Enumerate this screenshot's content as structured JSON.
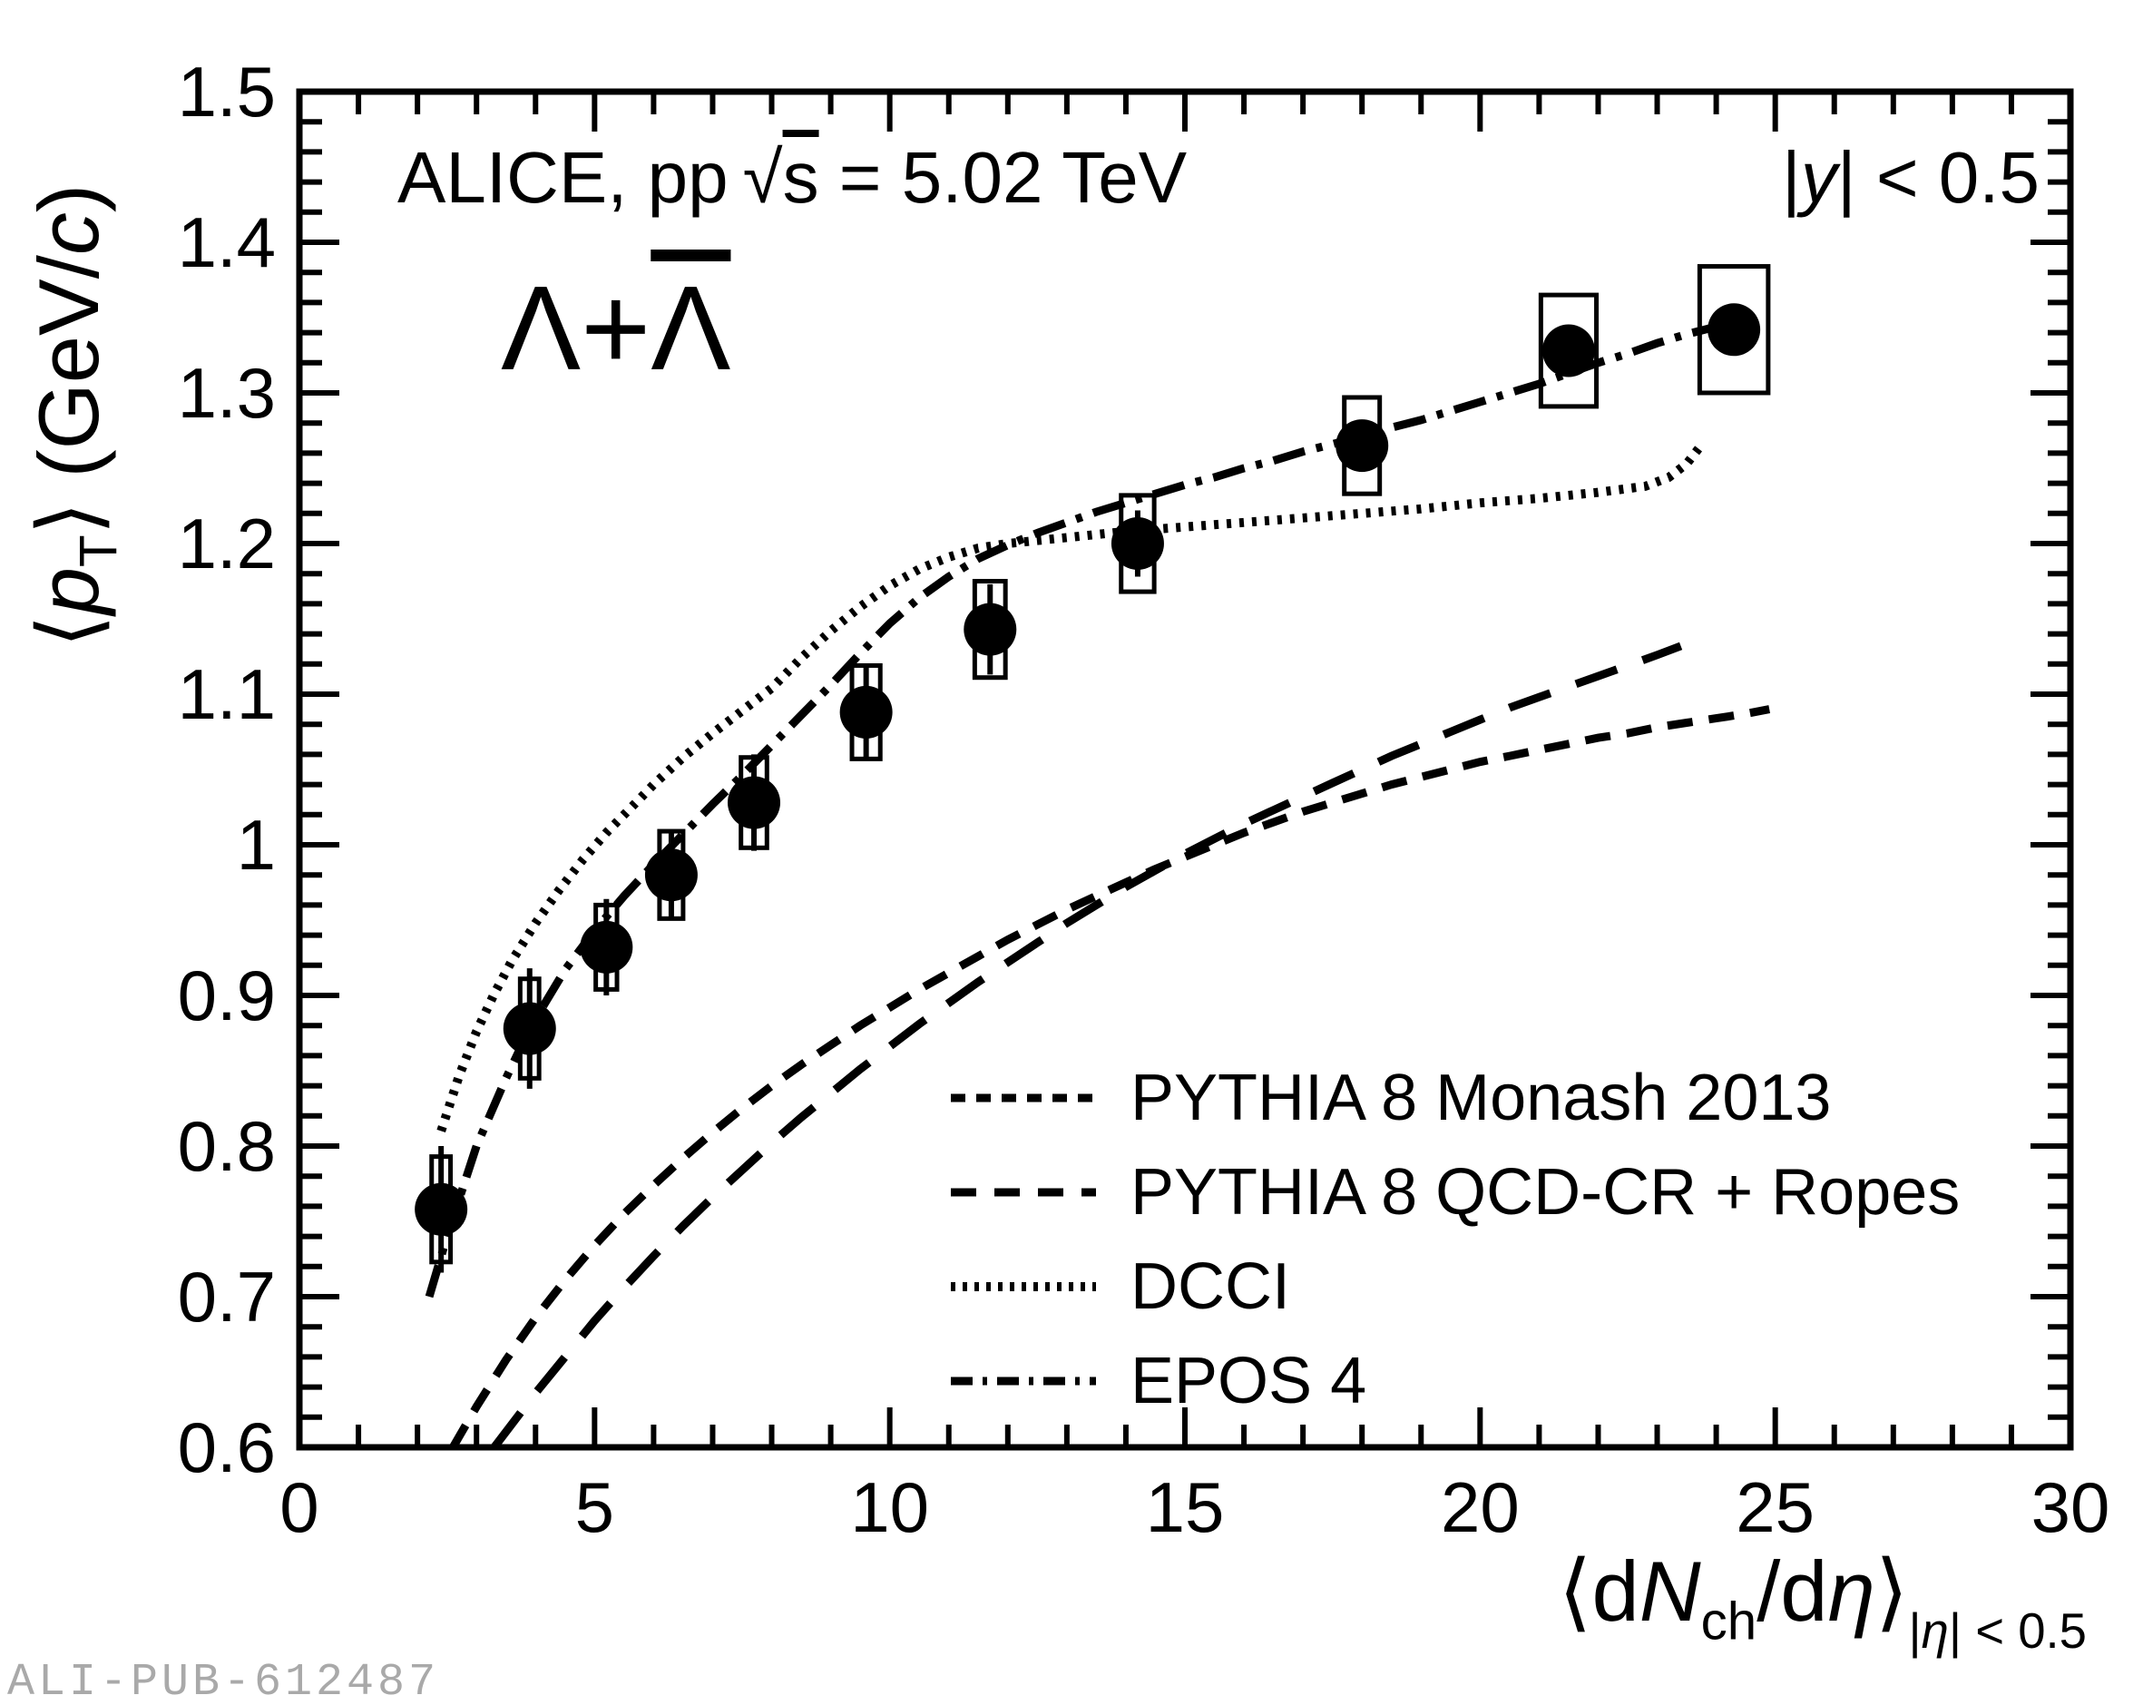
{
  "chart_data": {
    "type": "scatter",
    "title": {
      "prefix": "ALICE, pp",
      "sqrt_symbol": "√",
      "sqrt_arg": "s",
      "suffix": " = 5.02 TeV"
    },
    "rapidity_label": {
      "bar_open": "|",
      "y": "y",
      "rest": "| < 0.5"
    },
    "particle_label": {
      "first": "Λ+",
      "second_overlined": "Λ"
    },
    "xlabel": {
      "open": "⟨d",
      "N": "N",
      "sub": "ch",
      "mid": "/d",
      "eta": "η",
      "close": "⟩",
      "cond_open": "|",
      "cond_eta": "η",
      "cond_rest": "| < 0.5"
    },
    "ylabel": {
      "open": "⟨",
      "p": "p",
      "sub": "T",
      "mid": "⟩ (GeV/",
      "c": "c",
      "close": ")"
    },
    "xlim": [
      0,
      30
    ],
    "ylim": [
      0.6,
      1.5
    ],
    "x_major_ticks": [
      0,
      5,
      10,
      15,
      20,
      25,
      30
    ],
    "x_tick_labels": [
      "0",
      "5",
      "10",
      "15",
      "20",
      "25",
      "30"
    ],
    "x_minor_step": 1,
    "y_major_ticks": [
      0.6,
      0.7,
      0.8,
      0.9,
      1.0,
      1.1,
      1.2,
      1.3,
      1.4,
      1.5
    ],
    "y_tick_labels": [
      "0.6",
      "0.7",
      "0.8",
      "0.9",
      "1",
      "1.1",
      "1.2",
      "1.3",
      "1.4",
      "1.5"
    ],
    "y_minor_step": 0.02,
    "grid": false,
    "legend_position": "bottom-right-inside",
    "data_series": {
      "name": "ALICE data (Λ+Λ̄)",
      "marker": "filled-circle",
      "points": [
        {
          "x": 2.4,
          "y": 0.758,
          "stat": 0.042,
          "sys_x": 0.16,
          "sys_y": 0.035
        },
        {
          "x": 3.9,
          "y": 0.878,
          "stat": 0.04,
          "sys_x": 0.16,
          "sys_y": 0.033
        },
        {
          "x": 5.2,
          "y": 0.932,
          "stat": 0.032,
          "sys_x": 0.18,
          "sys_y": 0.028
        },
        {
          "x": 6.3,
          "y": 0.98,
          "stat": 0.03,
          "sys_x": 0.2,
          "sys_y": 0.029
        },
        {
          "x": 7.7,
          "y": 1.028,
          "stat": 0.032,
          "sys_x": 0.22,
          "sys_y": 0.03
        },
        {
          "x": 9.6,
          "y": 1.088,
          "stat": 0.03,
          "sys_x": 0.24,
          "sys_y": 0.031
        },
        {
          "x": 11.7,
          "y": 1.143,
          "stat": 0.03,
          "sys_x": 0.26,
          "sys_y": 0.032
        },
        {
          "x": 14.2,
          "y": 1.2,
          "stat": 0.022,
          "sys_x": 0.28,
          "sys_y": 0.032
        },
        {
          "x": 18.0,
          "y": 1.265,
          "stat": 0.016,
          "sys_x": 0.3,
          "sys_y": 0.032
        },
        {
          "x": 21.5,
          "y": 1.328,
          "stat": 0.012,
          "sys_x": 0.47,
          "sys_y": 0.037
        },
        {
          "x": 24.3,
          "y": 1.342,
          "stat": 0.012,
          "sys_x": 0.58,
          "sys_y": 0.042
        }
      ]
    },
    "model_curves": [
      {
        "name": "PYTHIA 8 Monash 2013",
        "style": "dash-medium",
        "points": [
          [
            2.6,
            0.6
          ],
          [
            3,
            0.627
          ],
          [
            3.5,
            0.658
          ],
          [
            4,
            0.686
          ],
          [
            4.5,
            0.711
          ],
          [
            5,
            0.734
          ],
          [
            5.5,
            0.755
          ],
          [
            6,
            0.774
          ],
          [
            6.5,
            0.792
          ],
          [
            7,
            0.809
          ],
          [
            7.5,
            0.825
          ],
          [
            8,
            0.84
          ],
          [
            8.5,
            0.854
          ],
          [
            9,
            0.867
          ],
          [
            9.5,
            0.88
          ],
          [
            10,
            0.892
          ],
          [
            10.5,
            0.904
          ],
          [
            11,
            0.915
          ],
          [
            11.5,
            0.926
          ],
          [
            12,
            0.937
          ],
          [
            12.5,
            0.947
          ],
          [
            13,
            0.957
          ],
          [
            13.5,
            0.966
          ],
          [
            14,
            0.975
          ],
          [
            14.5,
            0.984
          ],
          [
            15,
            0.992
          ],
          [
            15.5,
            1.0
          ],
          [
            16,
            1.008
          ],
          [
            16.5,
            1.015
          ],
          [
            17,
            1.022
          ],
          [
            17.5,
            1.028
          ],
          [
            18,
            1.034
          ],
          [
            18.5,
            1.04
          ],
          [
            19,
            1.045
          ],
          [
            19.5,
            1.05
          ],
          [
            20,
            1.055
          ],
          [
            20.5,
            1.059
          ],
          [
            21,
            1.063
          ],
          [
            21.5,
            1.067
          ],
          [
            22,
            1.071
          ],
          [
            22.5,
            1.074
          ],
          [
            23,
            1.078
          ],
          [
            23.5,
            1.081
          ],
          [
            24,
            1.084
          ],
          [
            24.5,
            1.087
          ],
          [
            24.9,
            1.09
          ]
        ]
      },
      {
        "name": "PYTHIA 8 QCD-CR + Ropes",
        "style": "dash-long",
        "points": [
          [
            3.3,
            0.6
          ],
          [
            4,
            0.636
          ],
          [
            4.5,
            0.66
          ],
          [
            5,
            0.684
          ],
          [
            5.5,
            0.706
          ],
          [
            6,
            0.727
          ],
          [
            6.5,
            0.747
          ],
          [
            7,
            0.766
          ],
          [
            7.5,
            0.784
          ],
          [
            8,
            0.802
          ],
          [
            8.5,
            0.819
          ],
          [
            9,
            0.835
          ],
          [
            9.5,
            0.851
          ],
          [
            10,
            0.866
          ],
          [
            10.5,
            0.881
          ],
          [
            11,
            0.895
          ],
          [
            11.5,
            0.909
          ],
          [
            12,
            0.922
          ],
          [
            12.5,
            0.935
          ],
          [
            13,
            0.948
          ],
          [
            13.5,
            0.96
          ],
          [
            14,
            0.972
          ],
          [
            14.5,
            0.983
          ],
          [
            15,
            0.994
          ],
          [
            15.5,
            1.004
          ],
          [
            16,
            1.014
          ],
          [
            16.5,
            1.023
          ],
          [
            17,
            1.032
          ],
          [
            17.5,
            1.041
          ],
          [
            18,
            1.05
          ],
          [
            18.5,
            1.059
          ],
          [
            19,
            1.067
          ],
          [
            19.5,
            1.075
          ],
          [
            20,
            1.083
          ],
          [
            20.5,
            1.091
          ],
          [
            21,
            1.098
          ],
          [
            21.5,
            1.105
          ],
          [
            22,
            1.112
          ],
          [
            22.5,
            1.119
          ],
          [
            23,
            1.126
          ],
          [
            23.4,
            1.132
          ]
        ]
      },
      {
        "name": "DCCI",
        "style": "dot",
        "points": [
          [
            2.4,
            0.81
          ],
          [
            2.7,
            0.846
          ],
          [
            3,
            0.876
          ],
          [
            3.3,
            0.901
          ],
          [
            3.6,
            0.923
          ],
          [
            4,
            0.948
          ],
          [
            4.4,
            0.97
          ],
          [
            4.8,
            0.99
          ],
          [
            5.2,
            1.008
          ],
          [
            5.6,
            1.024
          ],
          [
            6,
            1.04
          ],
          [
            6.5,
            1.058
          ],
          [
            7,
            1.074
          ],
          [
            7.5,
            1.089
          ],
          [
            8,
            1.104
          ],
          [
            8.5,
            1.124
          ],
          [
            9,
            1.142
          ],
          [
            9.5,
            1.158
          ],
          [
            10,
            1.172
          ],
          [
            10.5,
            1.183
          ],
          [
            11,
            1.191
          ],
          [
            11.5,
            1.197
          ],
          [
            12,
            1.2
          ],
          [
            12.5,
            1.202
          ],
          [
            13,
            1.204
          ],
          [
            14,
            1.208
          ],
          [
            15,
            1.211
          ],
          [
            16,
            1.214
          ],
          [
            17,
            1.217
          ],
          [
            18,
            1.22
          ],
          [
            19,
            1.223
          ],
          [
            20,
            1.227
          ],
          [
            21,
            1.23
          ],
          [
            22,
            1.234
          ],
          [
            22.8,
            1.238
          ],
          [
            23.2,
            1.244
          ],
          [
            23.5,
            1.253
          ],
          [
            23.7,
            1.263
          ]
        ]
      },
      {
        "name": "EPOS 4",
        "style": "dash-dot",
        "points": [
          [
            2.2,
            0.7
          ],
          [
            2.5,
            0.74
          ],
          [
            3,
            0.8
          ],
          [
            3.5,
            0.845
          ],
          [
            3.9,
            0.878
          ],
          [
            4.5,
            0.917
          ],
          [
            5,
            0.943
          ],
          [
            5.5,
            0.966
          ],
          [
            6,
            0.987
          ],
          [
            6.5,
            1.007
          ],
          [
            7,
            1.027
          ],
          [
            7.5,
            1.046
          ],
          [
            8,
            1.066
          ],
          [
            8.5,
            1.086
          ],
          [
            9,
            1.106
          ],
          [
            9.5,
            1.127
          ],
          [
            10,
            1.147
          ],
          [
            10.5,
            1.164
          ],
          [
            11,
            1.178
          ],
          [
            11.5,
            1.19
          ],
          [
            12,
            1.199
          ],
          [
            12.5,
            1.207
          ],
          [
            13,
            1.214
          ],
          [
            13.5,
            1.221
          ],
          [
            14,
            1.227
          ],
          [
            14.5,
            1.233
          ],
          [
            15,
            1.239
          ],
          [
            15.5,
            1.244
          ],
          [
            16,
            1.25
          ],
          [
            16.5,
            1.255
          ],
          [
            17,
            1.261
          ],
          [
            17.5,
            1.266
          ],
          [
            18,
            1.271
          ],
          [
            18.5,
            1.277
          ],
          [
            19,
            1.282
          ],
          [
            19.5,
            1.288
          ],
          [
            20,
            1.294
          ],
          [
            20.5,
            1.3
          ],
          [
            21,
            1.306
          ],
          [
            21.5,
            1.313
          ],
          [
            22,
            1.32
          ],
          [
            22.5,
            1.326
          ],
          [
            23,
            1.333
          ],
          [
            23.5,
            1.339
          ],
          [
            24,
            1.344
          ],
          [
            24.6,
            1.349
          ]
        ]
      }
    ],
    "legend": {
      "entries": [
        {
          "label": "PYTHIA 8 Monash 2013",
          "style": "dash-medium"
        },
        {
          "label": "PYTHIA 8 QCD-CR + Ropes",
          "style": "dash-long"
        },
        {
          "label": "DCCI",
          "style": "dot"
        },
        {
          "label": "EPOS 4",
          "style": "dash-dot"
        }
      ]
    },
    "watermark": "ALI-PUB-612487",
    "colors": {
      "foreground": "#000000",
      "background": "#ffffff",
      "watermark": "#a9a9a9"
    }
  }
}
